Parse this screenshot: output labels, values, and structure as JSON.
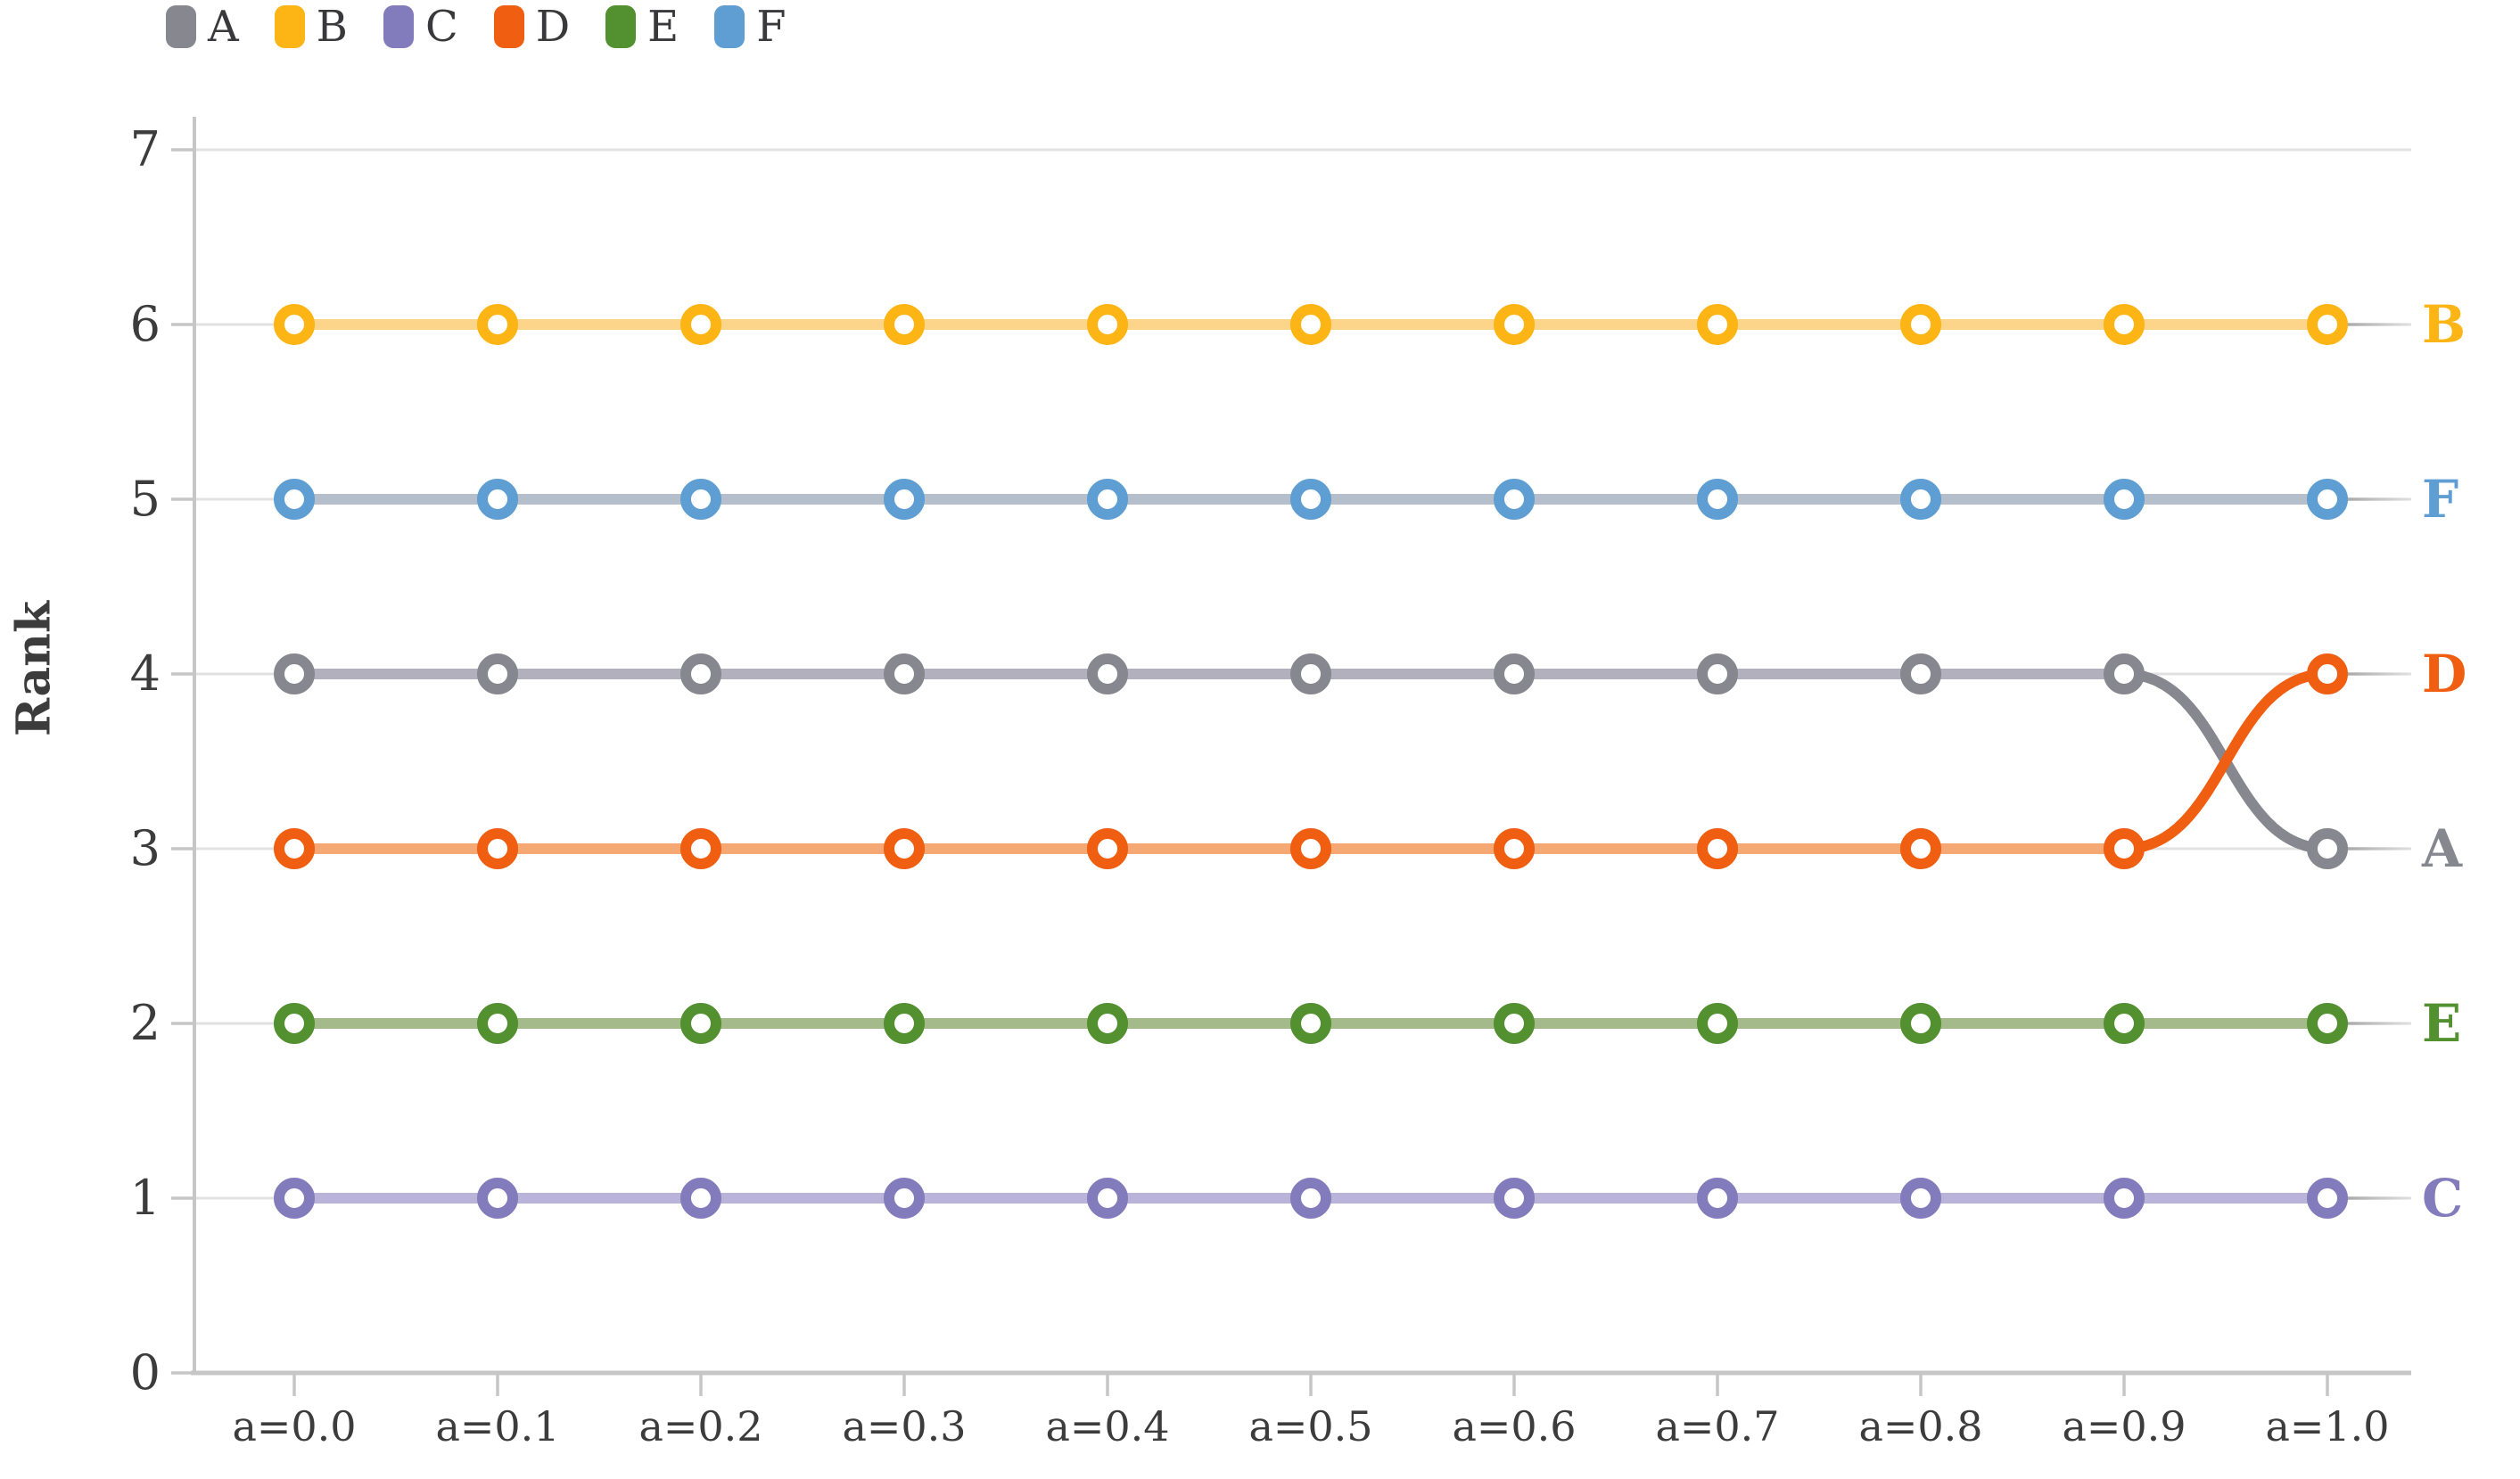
{
  "chart_data": {
    "type": "line",
    "variant": "bump-rank-chart",
    "title": "",
    "xlabel": "",
    "ylabel": "Rank",
    "categories": [
      "a=0.0",
      "a=0.1",
      "a=0.2",
      "a=0.3",
      "a=0.4",
      "a=0.5",
      "a=0.6",
      "a=0.7",
      "a=0.8",
      "a=0.9",
      "a=1.0"
    ],
    "y_ticks": [
      0,
      1,
      2,
      3,
      4,
      5,
      6,
      7
    ],
    "ylim": [
      0,
      7
    ],
    "grid": "horizontal-faint",
    "legend_position": "top-left",
    "legend_order": [
      "A",
      "B",
      "C",
      "D",
      "E",
      "F"
    ],
    "right_edge_labels": [
      "B",
      "F",
      "D",
      "A",
      "E",
      "C"
    ],
    "series": [
      {
        "name": "A",
        "color": "#87878f",
        "line_color": "#b2b0bc",
        "values": [
          4,
          4,
          4,
          4,
          4,
          4,
          4,
          4,
          4,
          4,
          3
        ]
      },
      {
        "name": "B",
        "color": "#fcb514",
        "line_color": "#fdd58a",
        "values": [
          6,
          6,
          6,
          6,
          6,
          6,
          6,
          6,
          6,
          6,
          6
        ]
      },
      {
        "name": "C",
        "color": "#837cbc",
        "line_color": "#b9b3da",
        "values": [
          1,
          1,
          1,
          1,
          1,
          1,
          1,
          1,
          1,
          1,
          1
        ]
      },
      {
        "name": "D",
        "color": "#f05e11",
        "line_color": "#f5a873",
        "values": [
          3,
          3,
          3,
          3,
          3,
          3,
          3,
          3,
          3,
          3,
          4
        ]
      },
      {
        "name": "E",
        "color": "#539030",
        "line_color": "#a4ba8a",
        "values": [
          2,
          2,
          2,
          2,
          2,
          2,
          2,
          2,
          2,
          2,
          2
        ]
      },
      {
        "name": "F",
        "color": "#5f9ed3",
        "line_color": "#b5bfcb",
        "values": [
          5,
          5,
          5,
          5,
          5,
          5,
          5,
          5,
          5,
          5,
          5
        ]
      }
    ],
    "style_colors": {
      "axis": "#c6c6c6",
      "grid": "#e1e1e1",
      "tick_label": "#3c3c3c",
      "leader": "#9a9a9a",
      "marker_fill": "#ffffff"
    }
  }
}
